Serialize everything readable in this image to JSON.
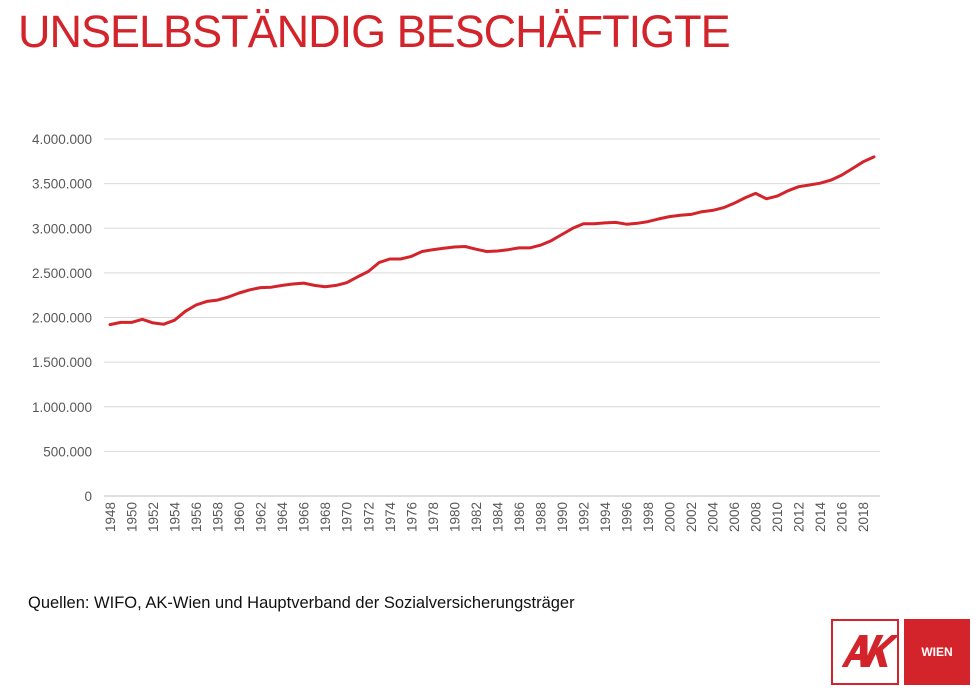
{
  "title": "UNSELBSTÄNDIG BESCHÄFTIGTE",
  "source": "Quellen: WIFO, AK-Wien und Hauptverband der Sozialversicherungsträger",
  "logo": {
    "left_text": "AK",
    "right_text": "WIEN"
  },
  "colors": {
    "accent": "#d4242b",
    "line": "#d4242b",
    "grid": "#d9d9d9",
    "text": "#595959"
  },
  "chart_data": {
    "type": "line",
    "title": "UNSELBSTÄNDIG BESCHÄFTIGTE",
    "xlabel": "",
    "ylabel": "",
    "ylim": [
      0,
      4000000
    ],
    "y_ticks": [
      0,
      500000,
      1000000,
      1500000,
      2000000,
      2500000,
      3000000,
      3500000,
      4000000
    ],
    "y_tick_labels": [
      "0",
      "500.000",
      "1.000.000",
      "1.500.000",
      "2.000.000",
      "2.500.000",
      "3.000.000",
      "3.500.000",
      "4.000.000"
    ],
    "x_tick_labels": [
      "1948",
      "1950",
      "1952",
      "1954",
      "1956",
      "1958",
      "1960",
      "1962",
      "1964",
      "1966",
      "1968",
      "1970",
      "1972",
      "1974",
      "1976",
      "1978",
      "1980",
      "1982",
      "1984",
      "1986",
      "1988",
      "1990",
      "1992",
      "1994",
      "1996",
      "1998",
      "2000",
      "2002",
      "2004",
      "2006",
      "2008",
      "2010",
      "2012",
      "2014",
      "2016",
      "2018"
    ],
    "grid": true,
    "legend": "none",
    "series": [
      {
        "x": [
          1948,
          1949,
          1950,
          1951,
          1952,
          1953,
          1954,
          1955,
          1956,
          1957,
          1958,
          1959,
          1960,
          1961,
          1962,
          1963,
          1964,
          1965,
          1966,
          1967,
          1968,
          1969,
          1970,
          1971,
          1972,
          1973,
          1974,
          1975,
          1976,
          1977,
          1978,
          1979,
          1980,
          1981,
          1982,
          1983,
          1984,
          1985,
          1986,
          1987,
          1988,
          1989,
          1990,
          1991,
          1992,
          1993,
          1994,
          1995,
          1996,
          1997,
          1998,
          1999,
          2000,
          2001,
          2002,
          2003,
          2004,
          2005,
          2006,
          2007,
          2008,
          2009,
          2010,
          2011,
          2012,
          2013,
          2014,
          2015,
          2016,
          2017,
          2018,
          2019
        ],
        "values": [
          1920000,
          1945000,
          1945000,
          1980000,
          1940000,
          1925000,
          1970000,
          2070000,
          2140000,
          2180000,
          2195000,
          2230000,
          2275000,
          2310000,
          2335000,
          2340000,
          2360000,
          2375000,
          2385000,
          2360000,
          2345000,
          2360000,
          2390000,
          2455000,
          2515000,
          2615000,
          2655000,
          2655000,
          2685000,
          2740000,
          2760000,
          2775000,
          2790000,
          2795000,
          2765000,
          2740000,
          2745000,
          2760000,
          2780000,
          2780000,
          2810000,
          2860000,
          2930000,
          3000000,
          3050000,
          3050000,
          3060000,
          3065000,
          3045000,
          3055000,
          3075000,
          3105000,
          3130000,
          3145000,
          3155000,
          3185000,
          3200000,
          3230000,
          3280000,
          3340000,
          3390000,
          3330000,
          3360000,
          3420000,
          3465000,
          3485000,
          3505000,
          3540000,
          3595000,
          3670000,
          3745000,
          3800000
        ]
      }
    ]
  }
}
